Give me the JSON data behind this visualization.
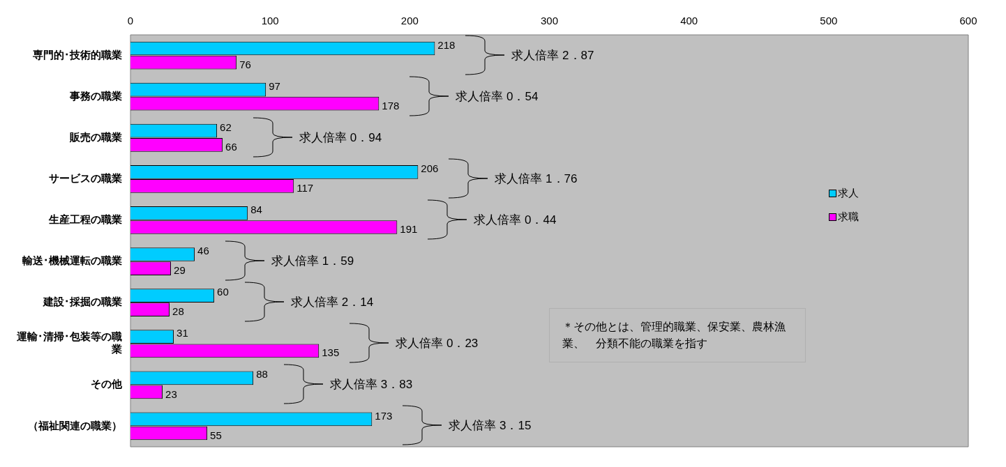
{
  "chart_data": {
    "type": "bar",
    "orientation": "horizontal",
    "categories": [
      "専門的･技術的職業",
      "事務の職業",
      "販売の職業",
      "サービスの職業",
      "生産工程の職業",
      "輸送･機械運転の職業",
      "建設･採掘の職業",
      "運輸･清掃･包装等の職業",
      "その他",
      "（福祉関連の職業）"
    ],
    "series": [
      {
        "name": "求人",
        "color": "#00ccff",
        "values": [
          218,
          97,
          62,
          206,
          84,
          46,
          60,
          31,
          88,
          173
        ]
      },
      {
        "name": "求職",
        "color": "#ff00ff",
        "values": [
          76,
          178,
          66,
          117,
          191,
          29,
          28,
          135,
          23,
          55
        ]
      }
    ],
    "xlim": [
      0,
      600
    ],
    "xticks": [
      0,
      100,
      200,
      300,
      400,
      500,
      600
    ],
    "grid": false,
    "legend": "right",
    "data_labels": true,
    "annotations": [
      "求人倍率 2．87",
      "求人倍率 0．54",
      "求人倍率 0．94",
      "求人倍率 1．76",
      "求人倍率 0．44",
      "求人倍率 1．59",
      "求人倍率 2．14",
      "求人倍率 0．23",
      "求人倍率 3．83",
      "求人倍率 3．15",
      "＊その他とは、管理的職業、保安業、農林漁業、　分類不能の職業を指す"
    ]
  }
}
